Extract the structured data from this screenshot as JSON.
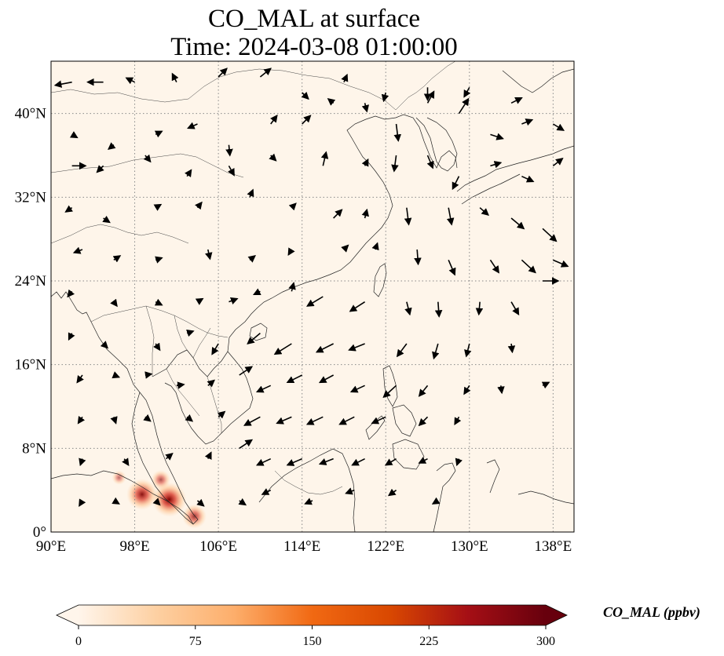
{
  "title": {
    "line1": "CO_MAL at surface",
    "line2": "Time: 2024-03-08 01:00:00"
  },
  "map": {
    "extent": {
      "lon": [
        90,
        140
      ],
      "lat": [
        0,
        45
      ]
    },
    "x_ticks": [
      {
        "value": 90,
        "label": "90°E"
      },
      {
        "value": 98,
        "label": "98°E"
      },
      {
        "value": 106,
        "label": "106°E"
      },
      {
        "value": 114,
        "label": "114°E"
      },
      {
        "value": 122,
        "label": "122°E"
      },
      {
        "value": 130,
        "label": "130°E"
      },
      {
        "value": 138,
        "label": "138°E"
      }
    ],
    "y_ticks": [
      {
        "value": 0,
        "label": "0°"
      },
      {
        "value": 8,
        "label": "8°N"
      },
      {
        "value": 16,
        "label": "16°N"
      },
      {
        "value": 24,
        "label": "24°N"
      },
      {
        "value": 32,
        "label": "32°N"
      },
      {
        "value": 40,
        "label": "40°N"
      }
    ],
    "gridlines": true,
    "background_color": "#fef5ea",
    "hotspots": [
      {
        "lon": 101.3,
        "lat": 3.1,
        "value": 300
      },
      {
        "lon": 98.7,
        "lat": 3.6,
        "value": 260
      },
      {
        "lon": 103.7,
        "lat": 1.5,
        "value": 180
      },
      {
        "lon": 100.5,
        "lat": 5.0,
        "value": 120
      },
      {
        "lon": 96.5,
        "lat": 5.2,
        "value": 60
      }
    ]
  },
  "colorbar": {
    "label": "CO_MAL (ppbv)",
    "min": 0,
    "max": 300,
    "extend": "both",
    "ticks": [
      {
        "value": 0,
        "label": "0"
      },
      {
        "value": 75,
        "label": "75"
      },
      {
        "value": 150,
        "label": "150"
      },
      {
        "value": 225,
        "label": "225"
      },
      {
        "value": 300,
        "label": "300"
      }
    ],
    "colors": [
      "#fff5eb",
      "#fdd0a2",
      "#fdae6b",
      "#f16913",
      "#d94801",
      "#a50f15",
      "#67000d"
    ]
  },
  "wind_vectors": [
    [
      92,
      43,
      -1.6,
      -0.3
    ],
    [
      95,
      43,
      -1.5,
      0
    ],
    [
      98,
      43,
      -0.8,
      0.4
    ],
    [
      102,
      43,
      -0.4,
      0.8
    ],
    [
      106,
      43.5,
      0.8,
      0.8
    ],
    [
      110,
      43.5,
      1.0,
      0.8
    ],
    [
      114,
      42,
      0.6,
      -0.6
    ],
    [
      118,
      43,
      0.3,
      0.7
    ],
    [
      122,
      42,
      -0.2,
      -0.8
    ],
    [
      126,
      42.5,
      0,
      -1.2
    ],
    [
      130,
      42.5,
      -0.5,
      -0.9
    ],
    [
      134,
      41,
      1.0,
      0.5
    ],
    [
      92,
      38,
      0.5,
      -0.3
    ],
    [
      96,
      37,
      -0.5,
      -0.4
    ],
    [
      100,
      38,
      0.6,
      0.3
    ],
    [
      104,
      39,
      -0.9,
      -0.4
    ],
    [
      107,
      37,
      0.1,
      -1.0
    ],
    [
      111,
      39,
      0.6,
      0.8
    ],
    [
      114,
      39,
      0.8,
      0.8
    ],
    [
      117,
      41,
      -0.5,
      0.4
    ],
    [
      120,
      41,
      0.2,
      -0.8
    ],
    [
      123,
      39,
      0.2,
      -1.6
    ],
    [
      126,
      41,
      0.6,
      1.1
    ],
    [
      129,
      40,
      0.9,
      1.4
    ],
    [
      132,
      38,
      1.2,
      -0.4
    ],
    [
      135,
      39,
      1.0,
      0.4
    ],
    [
      138,
      39,
      1.0,
      -0.6
    ],
    [
      92,
      35,
      1.3,
      0
    ],
    [
      95,
      35,
      -0.6,
      -0.6
    ],
    [
      99,
      36,
      0.5,
      -0.6
    ],
    [
      103,
      34,
      0.4,
      0.6
    ],
    [
      107,
      35,
      0.5,
      -0.9
    ],
    [
      111,
      36,
      0.5,
      -0.5
    ],
    [
      116,
      35,
      0.3,
      1.3
    ],
    [
      120,
      35,
      0.3,
      0.6
    ],
    [
      123,
      36,
      -0.2,
      -1.5
    ],
    [
      126,
      36,
      0.5,
      -1.2
    ],
    [
      129,
      34,
      -0.6,
      -1.2
    ],
    [
      132,
      35,
      1.0,
      0.3
    ],
    [
      135,
      34,
      1.1,
      -0.5
    ],
    [
      138,
      35,
      0.9,
      0.7
    ],
    [
      92,
      31,
      -0.6,
      -0.4
    ],
    [
      95,
      30,
      0.6,
      -0.4
    ],
    [
      100,
      31,
      0.5,
      0.3
    ],
    [
      104,
      31,
      0.4,
      0.5
    ],
    [
      109,
      32,
      0.3,
      0.7
    ],
    [
      113,
      31,
      0.4,
      0.4
    ],
    [
      117,
      30,
      0.8,
      0.8
    ],
    [
      120,
      30,
      0.2,
      0.8
    ],
    [
      124,
      31,
      0.2,
      -1.6
    ],
    [
      128,
      31,
      0.3,
      -1.6
    ],
    [
      131,
      31,
      0.8,
      -0.7
    ],
    [
      134,
      30,
      1.2,
      -1.0
    ],
    [
      137,
      29,
      1.3,
      -1.2
    ],
    [
      93,
      27,
      -0.8,
      -0.3
    ],
    [
      96,
      26,
      0.6,
      0.4
    ],
    [
      100,
      26,
      0.6,
      0.2
    ],
    [
      105,
      27,
      0.2,
      -0.9
    ],
    [
      109,
      26,
      0.5,
      0.4
    ],
    [
      113,
      27,
      -0.3,
      -0.5
    ],
    [
      118,
      27,
      0.4,
      0.4
    ],
    [
      121,
      27,
      0.2,
      0.6
    ],
    [
      125,
      27,
      0.1,
      -1.4
    ],
    [
      128,
      26,
      0.6,
      -1.4
    ],
    [
      132,
      26,
      0.8,
      -1.2
    ],
    [
      135,
      26,
      1.3,
      -1.2
    ],
    [
      138,
      26,
      1.4,
      -0.6
    ],
    [
      92,
      23,
      -0.4,
      -0.5
    ],
    [
      96,
      22,
      0.3,
      -0.4
    ],
    [
      100,
      22,
      0.6,
      -0.3
    ],
    [
      104,
      22,
      0.5,
      0.3
    ],
    [
      107,
      22,
      0.8,
      0.3
    ],
    [
      110,
      23,
      -0.6,
      -0.3
    ],
    [
      113,
      23,
      0.2,
      0.8
    ],
    [
      116,
      22.5,
      -1.5,
      -0.9
    ],
    [
      120,
      22,
      -1.4,
      -0.9
    ],
    [
      124,
      22,
      0.3,
      -1.2
    ],
    [
      127,
      22,
      0.1,
      -1.4
    ],
    [
      131,
      22,
      -0.1,
      -1.2
    ],
    [
      134,
      22,
      0.7,
      -1.2
    ],
    [
      137,
      24,
      1.5,
      0
    ],
    [
      92,
      19,
      -0.3,
      -0.6
    ],
    [
      95,
      18,
      0.4,
      -0.4
    ],
    [
      100,
      18,
      0.4,
      -0.6
    ],
    [
      103,
      19,
      0.6,
      0.2
    ],
    [
      106,
      18,
      -0.6,
      -1.0
    ],
    [
      110,
      19,
      -1.2,
      -1.0
    ],
    [
      113,
      18,
      -1.6,
      -1.0
    ],
    [
      117,
      18,
      -1.6,
      -0.8
    ],
    [
      120,
      18,
      -1.5,
      -0.6
    ],
    [
      124,
      18,
      -0.9,
      -1.2
    ],
    [
      127,
      18,
      -0.4,
      -1.4
    ],
    [
      130,
      18,
      -0.3,
      -1.2
    ],
    [
      134,
      18,
      0.1,
      -0.8
    ],
    [
      93,
      15,
      -0.5,
      -0.7
    ],
    [
      96,
      15,
      0.5,
      -0.2
    ],
    [
      99,
      15,
      0.6,
      0.1
    ],
    [
      102,
      14,
      0.7,
      0.1
    ],
    [
      105,
      14,
      0.6,
      0.5
    ],
    [
      108,
      15,
      1.2,
      0.8
    ],
    [
      111,
      14,
      -1.3,
      -0.6
    ],
    [
      114,
      15,
      -1.4,
      -0.7
    ],
    [
      117,
      15,
      -1.3,
      -0.7
    ],
    [
      120,
      14,
      -1.3,
      -0.6
    ],
    [
      123,
      14,
      -1.2,
      -1.1
    ],
    [
      126,
      14,
      -0.8,
      -1.0
    ],
    [
      130,
      14,
      -0.5,
      -0.8
    ],
    [
      133,
      14,
      0.1,
      -0.7
    ],
    [
      137,
      14,
      0.6,
      0.3
    ],
    [
      93,
      11,
      -0.4,
      -0.6
    ],
    [
      96,
      11,
      0.2,
      -0.6
    ],
    [
      99,
      11,
      0.5,
      -0.4
    ],
    [
      103,
      11,
      0.5,
      -0.4
    ],
    [
      106,
      11,
      0.6,
      0.5
    ],
    [
      110,
      11,
      -1.5,
      -0.8
    ],
    [
      113,
      11,
      -1.4,
      -0.6
    ],
    [
      116,
      11,
      -1.5,
      -0.7
    ],
    [
      119,
      11,
      -1.4,
      -0.7
    ],
    [
      122,
      11,
      -1.3,
      -0.6
    ],
    [
      126,
      11,
      -0.8,
      -0.8
    ],
    [
      129,
      11,
      -0.4,
      -0.7
    ],
    [
      93,
      7,
      -0.2,
      -0.6
    ],
    [
      97,
      7,
      0.4,
      -0.6
    ],
    [
      101,
      7,
      0.6,
      0.5
    ],
    [
      105,
      7,
      0.3,
      0.6
    ],
    [
      108,
      8,
      1.2,
      0.8
    ],
    [
      111,
      7,
      -1.3,
      -0.6
    ],
    [
      114,
      7,
      -1.4,
      -0.6
    ],
    [
      117,
      7,
      -1.3,
      -0.5
    ],
    [
      120,
      7,
      -1.2,
      -0.6
    ],
    [
      123,
      7,
      -1.0,
      -0.6
    ],
    [
      126,
      7,
      -0.8,
      -0.4
    ],
    [
      129,
      7,
      -0.2,
      -0.6
    ],
    [
      93,
      3,
      -0.3,
      -0.5
    ],
    [
      96,
      3,
      0.5,
      -0.3
    ],
    [
      100,
      3,
      0.4,
      -0.4
    ],
    [
      104,
      3,
      0.6,
      -0.5
    ],
    [
      108,
      3,
      0.6,
      -0.4
    ],
    [
      111,
      4,
      -0.8,
      -0.4
    ],
    [
      115,
      3,
      -0.7,
      -0.3
    ],
    [
      119,
      4,
      -0.8,
      -0.3
    ],
    [
      123,
      4,
      -0.7,
      -0.5
    ],
    [
      127,
      3,
      -0.5,
      -0.3
    ]
  ]
}
